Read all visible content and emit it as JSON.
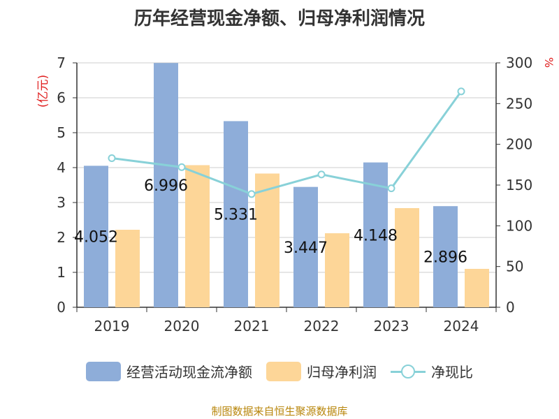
{
  "title": "历年经营现金净额、归母净利润情况",
  "left_unit": "(亿元)",
  "right_unit": "%",
  "source": "制图数据来自恒生聚源数据库",
  "colors": {
    "cash": "#8eadd9",
    "profit": "#fdd698",
    "ratio": "#88d1d8",
    "unit": "#e02020"
  },
  "legend": [
    {
      "label": "经营活动现金流净额",
      "type": "bar",
      "color": "#8eadd9"
    },
    {
      "label": "归母净利润",
      "type": "bar",
      "color": "#fdd698"
    },
    {
      "label": "净现比",
      "type": "line",
      "color": "#88d1d8"
    }
  ],
  "chart_data": {
    "type": "bar",
    "categories": [
      "2019",
      "2020",
      "2021",
      "2022",
      "2023",
      "2024"
    ],
    "series": [
      {
        "name": "经营活动现金流净额",
        "values": [
          4.052,
          6.996,
          5.331,
          3.447,
          4.148,
          2.896
        ],
        "data_labels": [
          "4.052",
          "6.996",
          "5.331",
          "3.447",
          "4.148",
          "2.896"
        ],
        "axis": "left"
      },
      {
        "name": "归母净利润",
        "values": [
          2.22,
          4.07,
          3.83,
          2.12,
          2.84,
          1.1
        ],
        "axis": "left"
      },
      {
        "name": "净现比",
        "type": "line",
        "values": [
          183,
          172,
          139,
          163,
          146,
          265
        ],
        "axis": "right"
      }
    ],
    "y_left": {
      "ylim": [
        0,
        7
      ],
      "ticks": [
        "0",
        "1",
        "2",
        "3",
        "4",
        "5",
        "6",
        "7"
      ]
    },
    "y_right": {
      "ylim": [
        0,
        300
      ],
      "ticks": [
        "0",
        "50",
        "100",
        "150",
        "200",
        "250",
        "300"
      ]
    },
    "grid": true,
    "legend_position": "bottom"
  }
}
